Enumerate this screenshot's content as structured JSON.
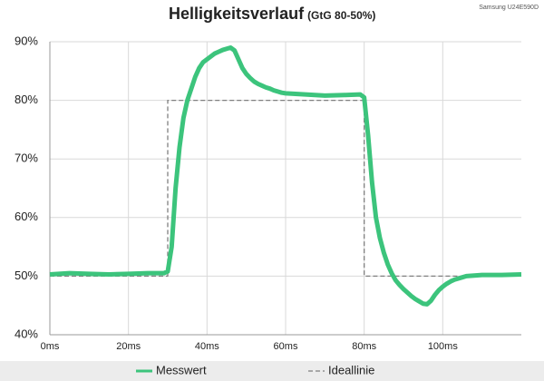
{
  "chart_data": {
    "type": "line",
    "title": "Helligkeitsverlauf",
    "subtitle": "(GtG 80-50%)",
    "annotation": "Samsung U24E590D",
    "series": [
      {
        "name": "Messwert",
        "color": "#3cc47c",
        "style": "solid",
        "x": [
          0,
          5,
          10,
          15,
          20,
          25,
          29,
          30,
          31,
          32,
          33,
          34,
          35,
          36,
          37,
          38,
          39,
          40,
          41,
          42,
          43,
          44,
          45,
          46,
          47,
          48,
          49,
          50,
          51,
          52,
          53,
          54,
          55,
          56,
          57,
          58,
          59,
          60,
          65,
          70,
          75,
          79,
          80,
          81,
          82,
          83,
          84,
          85,
          86,
          87,
          88,
          89,
          90,
          91,
          92,
          93,
          94,
          95,
          96,
          97,
          98,
          99,
          100,
          101,
          102,
          103,
          104,
          105,
          106,
          110,
          115,
          120
        ],
        "values": [
          50.3,
          50.5,
          50.4,
          50.3,
          50.4,
          50.5,
          50.5,
          50.8,
          55,
          65,
          72,
          77,
          80,
          82,
          84,
          85.5,
          86.5,
          87,
          87.5,
          88,
          88.3,
          88.6,
          88.8,
          89,
          88.5,
          87,
          85.5,
          84.5,
          83.8,
          83.2,
          82.8,
          82.5,
          82.2,
          82,
          81.7,
          81.5,
          81.3,
          81.2,
          81,
          80.8,
          80.9,
          81,
          80.5,
          74,
          66,
          60,
          56.5,
          54,
          52,
          50.5,
          49.3,
          48.5,
          47.8,
          47.2,
          46.6,
          46.1,
          45.7,
          45.3,
          45.2,
          45.8,
          46.8,
          47.6,
          48.2,
          48.7,
          49.1,
          49.4,
          49.6,
          49.8,
          50,
          50.2,
          50.2,
          50.3
        ]
      },
      {
        "name": "Ideallinie",
        "color": "#808080",
        "style": "dashed",
        "x": [
          0,
          30,
          30,
          80,
          80,
          120
        ],
        "values": [
          50,
          50,
          80,
          80,
          50,
          50
        ]
      }
    ],
    "xlim": [
      0,
      120
    ],
    "xticks": [
      {
        "value": 0,
        "label": "0ms"
      },
      {
        "value": 20,
        "label": "20ms"
      },
      {
        "value": 40,
        "label": "40ms"
      },
      {
        "value": 60,
        "label": "60ms"
      },
      {
        "value": 80,
        "label": "80ms"
      },
      {
        "value": 100,
        "label": "100ms"
      }
    ],
    "ylim": [
      40,
      90
    ],
    "yticks": [
      {
        "value": 40,
        "label": "40%"
      },
      {
        "value": 50,
        "label": "50%"
      },
      {
        "value": 60,
        "label": "60%"
      },
      {
        "value": 70,
        "label": "70%"
      },
      {
        "value": 80,
        "label": "80%"
      },
      {
        "value": 90,
        "label": "90%"
      }
    ],
    "grid": true,
    "legend": "bottom"
  }
}
